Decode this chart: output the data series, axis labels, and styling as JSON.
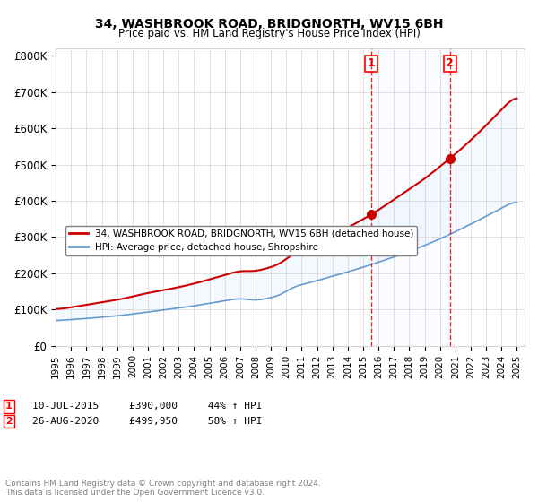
{
  "title": "34, WASHBROOK ROAD, BRIDGNORTH, WV15 6BH",
  "subtitle": "Price paid vs. HM Land Registry's House Price Index (HPI)",
  "ylabel": "",
  "ylim": [
    0,
    820000
  ],
  "yticks": [
    0,
    100000,
    200000,
    300000,
    400000,
    500000,
    600000,
    700000,
    800000
  ],
  "ytick_labels": [
    "£0",
    "£100K",
    "£200K",
    "£300K",
    "£400K",
    "£500K",
    "£600K",
    "£700K",
    "£800K"
  ],
  "sale1_date": 2015.53,
  "sale1_price": 390000,
  "sale1_label": "1",
  "sale1_text": "10-JUL-2015",
  "sale1_amount": "£390,000",
  "sale1_hpi": "44% ↑ HPI",
  "sale2_date": 2020.65,
  "sale2_price": 499950,
  "sale2_label": "2",
  "sale2_text": "26-AUG-2020",
  "sale2_amount": "£499,950",
  "sale2_hpi": "58% ↑ HPI",
  "red_line_color": "#cc0000",
  "blue_line_color": "#6699cc",
  "shaded_color": "#ddeeff",
  "vline_color": "#cc0000",
  "marker_color": "#cc0000",
  "legend1_label": "34, WASHBROOK ROAD, BRIDGNORTH, WV15 6BH (detached house)",
  "legend2_label": "HPI: Average price, detached house, Shropshire",
  "footer": "Contains HM Land Registry data © Crown copyright and database right 2024.\nThis data is licensed under the Open Government Licence v3.0.",
  "xmin": 1995,
  "xmax": 2025.5
}
